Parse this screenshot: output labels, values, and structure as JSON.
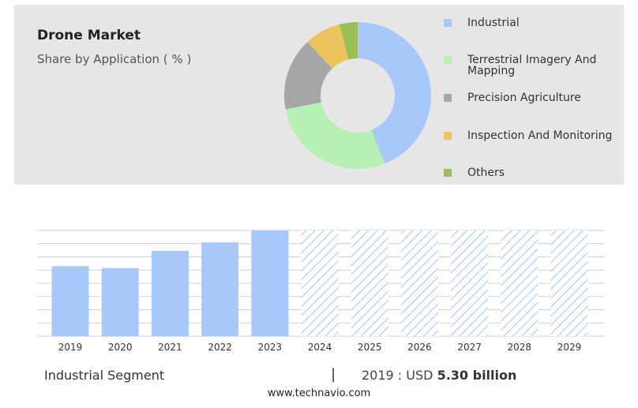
{
  "header": {
    "title": "Drone Market",
    "subtitle": "Share by Application ( % )"
  },
  "chart_data": [
    {
      "type": "pie",
      "donut": true,
      "segments": [
        {
          "label": "Industrial",
          "value": 44,
          "color": "#a8c8fa"
        },
        {
          "label": "Terrestrial Imagery And Mapping",
          "value": 28,
          "color": "#b6f0b4"
        },
        {
          "label": "Precision Agriculture",
          "value": 16,
          "color": "#a6a6a6"
        },
        {
          "label": "Inspection And Monitoring",
          "value": 8,
          "color": "#ecc35c"
        },
        {
          "label": "Others",
          "value": 4,
          "color": "#9bbe56"
        }
      ]
    },
    {
      "type": "bar",
      "categories": [
        "2019",
        "2020",
        "2021",
        "2022",
        "2023",
        "2024",
        "2025",
        "2026",
        "2027",
        "2028",
        "2029"
      ],
      "values": [
        5.3,
        5.15,
        6.45,
        7.1,
        8.0,
        8.0,
        8.0,
        8.0,
        8.0,
        8.0,
        8.0
      ],
      "forecast_from": "2024",
      "ylim": [
        0,
        8.0
      ],
      "grid": true,
      "colors": {
        "actual": "#a8c8fa",
        "forecast": "#a8c8fa"
      }
    }
  ],
  "footer": {
    "segment": "Industrial Segment",
    "separator": "|",
    "year_prefix": "2019 : USD",
    "value": "5.30 billion",
    "url": "www.technavio.com"
  }
}
